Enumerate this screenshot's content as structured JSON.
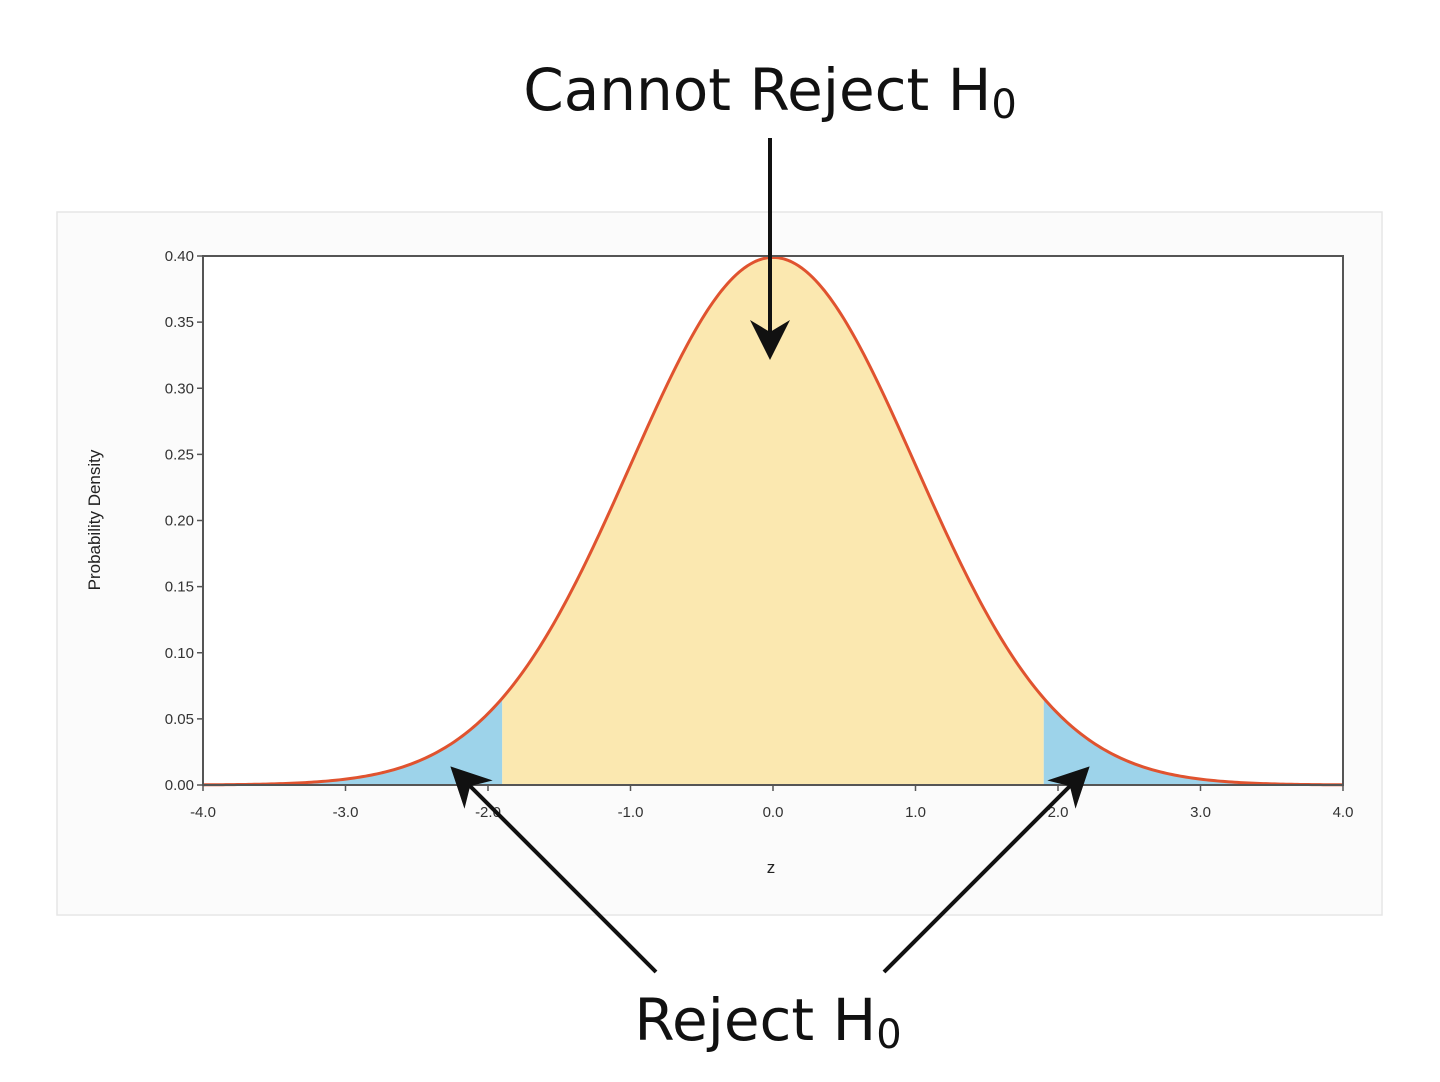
{
  "annotations": {
    "top": {
      "text": "Cannot Reject H",
      "subscript": "0"
    },
    "bottom": {
      "text": "Reject H",
      "subscript": "0"
    }
  },
  "chart_data": {
    "type": "area",
    "distribution": "standard normal",
    "xlabel": "z",
    "ylabel": "Probability Density",
    "xlim": [
      -4.0,
      4.0
    ],
    "ylim": [
      0.0,
      0.4
    ],
    "x_ticks": [
      "-4.0",
      "-3.0",
      "-2.0",
      "-1.0",
      "0.0",
      "1.0",
      "2.0",
      "3.0",
      "4.0"
    ],
    "x_tick_values": [
      -4,
      -3,
      -2,
      -1,
      0,
      1,
      2,
      3,
      4
    ],
    "y_ticks": [
      "0.00",
      "0.05",
      "0.10",
      "0.15",
      "0.20",
      "0.25",
      "0.30",
      "0.35",
      "0.40"
    ],
    "y_tick_values": [
      0,
      0.05,
      0.1,
      0.15,
      0.2,
      0.25,
      0.3,
      0.35,
      0.4
    ],
    "mean": 0,
    "sd": 1,
    "critical_values": [
      -1.9,
      1.9
    ],
    "grid": false,
    "colors": {
      "curve": "#e0532f",
      "accept_region": "#fbe8b0",
      "reject_region": "#9dd3ea",
      "frame": "#555555"
    }
  }
}
